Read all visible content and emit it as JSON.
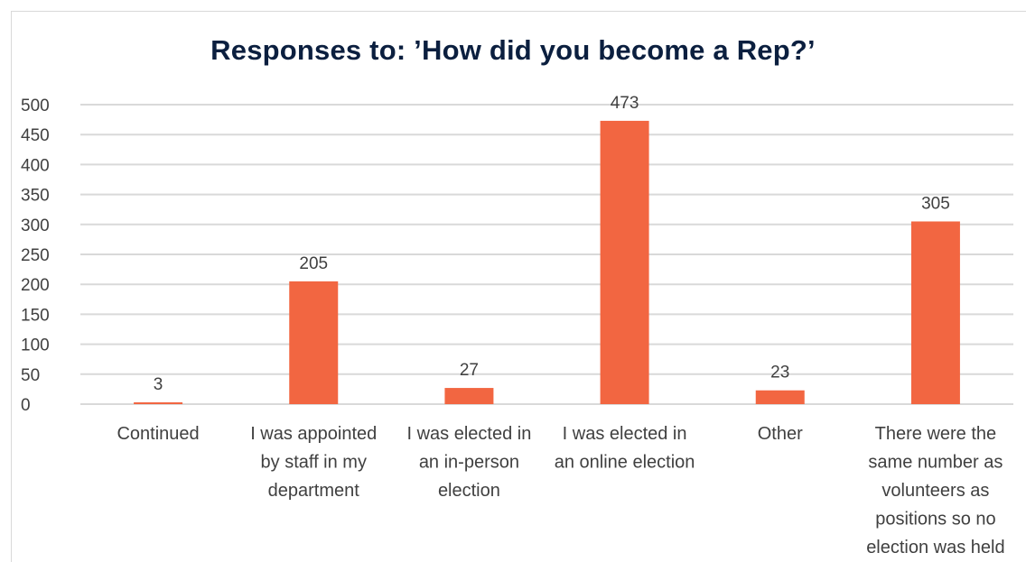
{
  "chart_data": {
    "type": "bar",
    "title": "Responses to: ’How did you become a Rep?’",
    "categories": [
      [
        "Continued"
      ],
      [
        "I was appointed",
        "by staff in my",
        "department"
      ],
      [
        "I was elected in",
        "an in-person",
        "election"
      ],
      [
        "I was elected in",
        "an online election"
      ],
      [
        "Other"
      ],
      [
        "There were the",
        "same number as",
        "volunteers as",
        "positions so no",
        "election was held"
      ]
    ],
    "values": [
      3,
      205,
      27,
      473,
      23,
      305
    ],
    "data_labels": [
      "3",
      "205",
      "27",
      "473",
      "23",
      "305"
    ],
    "ylim": [
      0,
      500
    ],
    "yticks": [
      0,
      50,
      100,
      150,
      200,
      250,
      300,
      350,
      400,
      450,
      500
    ],
    "ytick_labels": [
      "0",
      "50",
      "100",
      "150",
      "200",
      "250",
      "300",
      "350",
      "400",
      "450",
      "500"
    ],
    "xlabel": "",
    "ylabel": "",
    "grid": true,
    "legend": "none",
    "colors": {
      "bar": "#f26641",
      "grid": "#d9d9d9",
      "title": "#0b1f3f",
      "text": "#404040"
    }
  }
}
